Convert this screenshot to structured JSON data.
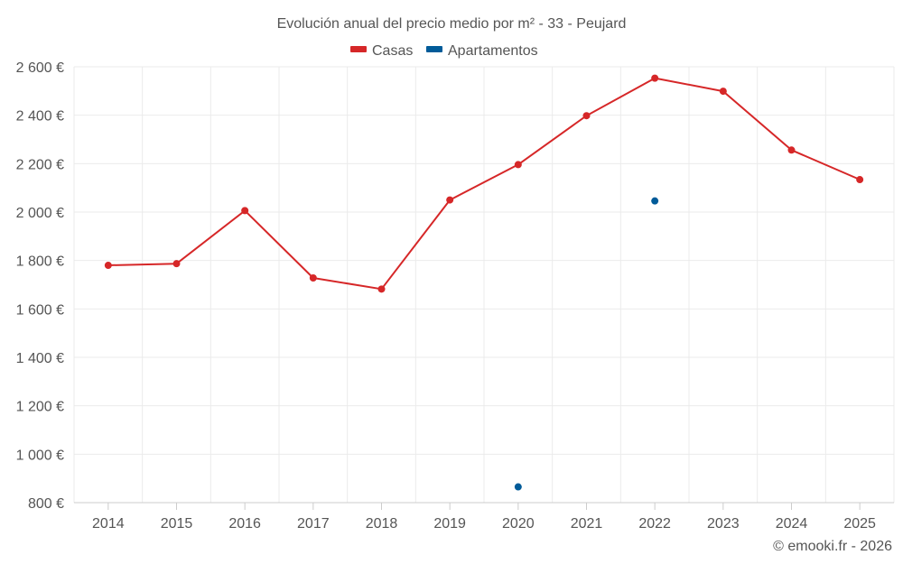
{
  "chart_data": {
    "type": "line",
    "title": "Evolución anual del precio medio por m² - 33 - Peujard",
    "categories": [
      "2014",
      "2015",
      "2016",
      "2017",
      "2018",
      "2019",
      "2020",
      "2021",
      "2022",
      "2023",
      "2024",
      "2025"
    ],
    "series": [
      {
        "name": "Casas",
        "color": "#d62728",
        "values": [
          1780,
          1787,
          2006,
          1728,
          1682,
          2050,
          2196,
          2398,
          2553,
          2499,
          2256,
          2134
        ]
      },
      {
        "name": "Apartamentos",
        "color": "#005b99",
        "values": [
          null,
          null,
          null,
          null,
          null,
          null,
          865,
          null,
          2046,
          null,
          null,
          null
        ]
      }
    ],
    "ylim": [
      800,
      2600
    ],
    "yticks": [
      800,
      1000,
      1200,
      1400,
      1600,
      1800,
      2000,
      2200,
      2400,
      2600
    ],
    "ytick_labels": [
      "800 €",
      "1 000 €",
      "1 200 €",
      "1 400 €",
      "1 600 €",
      "1 800 €",
      "2 000 €",
      "2 200 €",
      "2 400 €",
      "2 600 €"
    ],
    "xlabel": "",
    "ylabel": "",
    "grid": true,
    "legend_position": "top-center"
  },
  "credit": "© emooki.fr - 2026"
}
